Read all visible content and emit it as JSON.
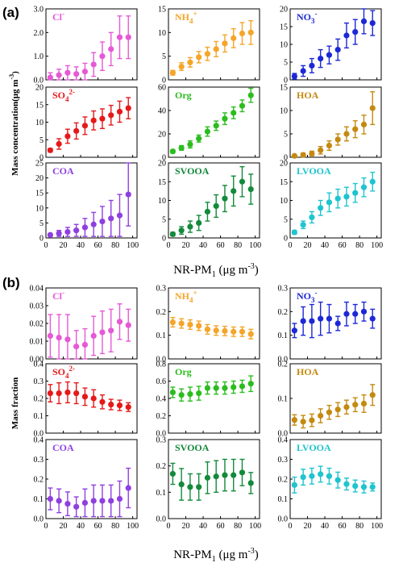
{
  "chart_data": [
    {
      "panel_label": "(a)",
      "type": "scatter",
      "ylabel": "Mass concentration(μg m",
      "ylabel_sup": "-3",
      "ylabel_close": ")",
      "xlabel": "NR-PM",
      "xlabel_sub": "1",
      "xlabel_unit": " (μg m",
      "xlabel_unit_sup": "-3",
      "xlabel_close": ")",
      "x": [
        5,
        15,
        25,
        35,
        45,
        55,
        65,
        75,
        85,
        95
      ],
      "xlim": [
        0,
        105
      ],
      "xticks": [
        "0",
        "20",
        "40",
        "60",
        "80",
        "100"
      ],
      "subplots": [
        {
          "name": "Cl",
          "sup": "-",
          "sub": "",
          "color": "#e659d6",
          "ylim": [
            0,
            3
          ],
          "yticks": [
            "0.0",
            "1.0",
            "2.0",
            "3.0"
          ],
          "values": [
            0.1,
            0.2,
            0.3,
            0.25,
            0.35,
            0.65,
            1.0,
            1.3,
            1.8,
            1.8
          ],
          "errors": [
            0.2,
            0.25,
            0.3,
            0.3,
            0.35,
            0.5,
            0.6,
            0.7,
            0.9,
            0.9
          ]
        },
        {
          "name": "NH",
          "sup": "+",
          "sub": "4",
          "color": "#f5a52a",
          "ylim": [
            0,
            15
          ],
          "yticks": [
            "0",
            "5",
            "10",
            "15"
          ],
          "values": [
            1.5,
            2.8,
            3.7,
            4.8,
            5.5,
            6.5,
            7.7,
            8.8,
            9.8,
            10.0
          ],
          "errors": [
            0.5,
            0.8,
            1.0,
            1.2,
            1.4,
            1.6,
            1.8,
            2.0,
            2.3,
            2.5
          ]
        },
        {
          "name": "NO",
          "sup": "-",
          "sub": "3",
          "color": "#1c28d6",
          "ylim": [
            0,
            20
          ],
          "yticks": [
            "0",
            "5",
            "10",
            "15",
            "20"
          ],
          "values": [
            1.0,
            2.5,
            4.0,
            6.0,
            7.0,
            8.5,
            12.5,
            13.5,
            16.5,
            16.0
          ],
          "errors": [
            0.8,
            1.5,
            2.0,
            2.5,
            2.5,
            3.0,
            3.5,
            3.5,
            3.5,
            3.5
          ]
        },
        {
          "name": "SO",
          "sup": "2-",
          "sub": "4",
          "color": "#e61919",
          "ylim": [
            0,
            20
          ],
          "yticks": [
            "0",
            "5",
            "10",
            "15",
            "20"
          ],
          "values": [
            2.0,
            3.8,
            6.0,
            7.5,
            9.0,
            10.5,
            11.0,
            12.0,
            13.0,
            14.0
          ],
          "errors": [
            0.5,
            1.5,
            2.0,
            2.3,
            2.5,
            2.7,
            2.8,
            2.8,
            3.0,
            3.0
          ]
        },
        {
          "name": "Org",
          "sup": "",
          "sub": "",
          "color": "#2bbd1e",
          "ylim": [
            0,
            60
          ],
          "yticks": [
            "0",
            "20",
            "40",
            "60"
          ],
          "values": [
            5,
            8,
            11,
            16,
            22,
            27,
            33,
            38,
            44,
            53
          ],
          "errors": [
            1.5,
            2,
            3,
            3,
            4,
            4,
            5,
            5,
            5,
            6
          ]
        },
        {
          "name": "HOA",
          "sup": "",
          "sub": "",
          "color": "#c48a10",
          "ylim": [
            0,
            15
          ],
          "yticks": [
            "0",
            "5",
            "10",
            "15"
          ],
          "values": [
            0.3,
            0.5,
            0.8,
            1.5,
            2.5,
            3.8,
            5.0,
            6.0,
            7.0,
            10.5
          ],
          "errors": [
            0.2,
            0.4,
            0.5,
            0.8,
            1.0,
            1.2,
            1.5,
            1.8,
            2.0,
            3.5
          ]
        },
        {
          "name": "COA",
          "sup": "",
          "sub": "",
          "color": "#8f3fe0",
          "ylim": [
            0,
            25
          ],
          "yticks": [
            "0",
            "5",
            "10",
            "15",
            "20",
            "25"
          ],
          "values": [
            1.0,
            1.5,
            2.0,
            2.5,
            3.5,
            4.5,
            5.5,
            6.5,
            7.5,
            14.5
          ],
          "errors": [
            0.5,
            1.0,
            1.5,
            2.0,
            3.0,
            4.0,
            5.0,
            6.0,
            7.0,
            10.5
          ]
        },
        {
          "name": "SVOOA",
          "sup": "",
          "sub": "",
          "color": "#138a3a",
          "ylim": [
            0,
            20
          ],
          "yticks": [
            "0",
            "5",
            "10",
            "15",
            "20"
          ],
          "values": [
            1.0,
            2.0,
            3.0,
            4.0,
            7.0,
            8.5,
            10.5,
            12.5,
            15.0,
            13.0
          ],
          "errors": [
            0.5,
            1.0,
            1.5,
            2.0,
            2.5,
            3.0,
            3.5,
            4.0,
            4.0,
            4.0
          ]
        },
        {
          "name": "LVOOA",
          "sup": "",
          "sub": "",
          "color": "#1ec4cf",
          "ylim": [
            0,
            20
          ],
          "yticks": [
            "0",
            "5",
            "10",
            "15",
            "20"
          ],
          "values": [
            1.5,
            3.5,
            5.5,
            8.0,
            9.5,
            10.5,
            11.0,
            12.0,
            13.5,
            15.0
          ],
          "errors": [
            0.5,
            1.0,
            1.5,
            2.0,
            2.5,
            2.5,
            2.5,
            2.5,
            2.5,
            2.5
          ]
        }
      ]
    },
    {
      "panel_label": "(b)",
      "type": "scatter",
      "ylabel": "Mass fraction",
      "xlabel": "NR-PM",
      "xlabel_sub": "1",
      "xlabel_unit": " (μg m",
      "xlabel_unit_sup": "-3",
      "xlabel_close": ")",
      "x": [
        5,
        15,
        25,
        35,
        45,
        55,
        65,
        75,
        85,
        95
      ],
      "xlim": [
        0,
        105
      ],
      "xticks": [
        "0",
        "20",
        "40",
        "60",
        "80",
        "100"
      ],
      "subplots": [
        {
          "name": "Cl",
          "sup": "-",
          "sub": "",
          "color": "#e659d6",
          "ylim": [
            0,
            0.04
          ],
          "yticks": [
            "0.00",
            "0.01",
            "0.02",
            "0.03",
            "0.04"
          ],
          "values": [
            0.013,
            0.012,
            0.011,
            0.007,
            0.008,
            0.013,
            0.015,
            0.016,
            0.021,
            0.019
          ],
          "errors": [
            0.012,
            0.013,
            0.014,
            0.009,
            0.009,
            0.011,
            0.012,
            0.012,
            0.01,
            0.009
          ]
        },
        {
          "name": "NH",
          "sup": "+",
          "sub": "4",
          "color": "#f5a52a",
          "ylim": [
            0,
            0.3
          ],
          "yticks": [
            "0.0",
            "0.1",
            "0.2",
            "0.3"
          ],
          "values": [
            0.155,
            0.15,
            0.145,
            0.14,
            0.125,
            0.12,
            0.118,
            0.115,
            0.115,
            0.105
          ],
          "errors": [
            0.02,
            0.02,
            0.02,
            0.02,
            0.02,
            0.02,
            0.02,
            0.02,
            0.02,
            0.02
          ]
        },
        {
          "name": "NO",
          "sup": "-",
          "sub": "3",
          "color": "#1c28d6",
          "ylim": [
            0,
            0.3
          ],
          "yticks": [
            "0.0",
            "0.1",
            "0.2",
            "0.3"
          ],
          "values": [
            0.12,
            0.16,
            0.16,
            0.17,
            0.17,
            0.15,
            0.19,
            0.19,
            0.2,
            0.17
          ],
          "errors": [
            0.03,
            0.06,
            0.07,
            0.07,
            0.06,
            0.03,
            0.05,
            0.04,
            0.04,
            0.04
          ]
        },
        {
          "name": "SO",
          "sup": "2-",
          "sub": "4",
          "color": "#e61919",
          "ylim": [
            0,
            0.4
          ],
          "yticks": [
            "0.0",
            "0.1",
            "0.2",
            "0.3",
            "0.4"
          ],
          "values": [
            0.23,
            0.23,
            0.235,
            0.23,
            0.21,
            0.2,
            0.18,
            0.165,
            0.16,
            0.15
          ],
          "errors": [
            0.05,
            0.06,
            0.06,
            0.06,
            0.05,
            0.05,
            0.04,
            0.03,
            0.03,
            0.025
          ]
        },
        {
          "name": "Org",
          "sup": "",
          "sub": "",
          "color": "#2bbd1e",
          "ylim": [
            0,
            0.8
          ],
          "yticks": [
            "0.0",
            "0.2",
            "0.4",
            "0.6",
            "0.8"
          ],
          "values": [
            0.47,
            0.44,
            0.45,
            0.46,
            0.52,
            0.52,
            0.52,
            0.53,
            0.54,
            0.57
          ],
          "errors": [
            0.06,
            0.07,
            0.08,
            0.08,
            0.07,
            0.07,
            0.07,
            0.07,
            0.07,
            0.09
          ]
        },
        {
          "name": "HOA",
          "sup": "",
          "sub": "",
          "color": "#c48a10",
          "ylim": [
            0,
            0.2
          ],
          "yticks": [
            "0.0",
            "0.1",
            "0.2"
          ],
          "values": [
            0.038,
            0.033,
            0.037,
            0.05,
            0.06,
            0.068,
            0.075,
            0.082,
            0.085,
            0.11
          ],
          "errors": [
            0.015,
            0.018,
            0.018,
            0.02,
            0.02,
            0.02,
            0.02,
            0.02,
            0.025,
            0.03
          ]
        },
        {
          "name": "COA",
          "sup": "",
          "sub": "",
          "color": "#8f3fe0",
          "ylim": [
            0,
            0.4
          ],
          "yticks": [
            "0.0",
            "0.1",
            "0.2",
            "0.3",
            "0.4"
          ],
          "values": [
            0.1,
            0.09,
            0.075,
            0.06,
            0.08,
            0.09,
            0.09,
            0.09,
            0.1,
            0.155
          ],
          "errors": [
            0.055,
            0.06,
            0.06,
            0.05,
            0.07,
            0.08,
            0.08,
            0.08,
            0.09,
            0.1
          ]
        },
        {
          "name": "SVOOA",
          "sup": "",
          "sub": "",
          "color": "#138a3a",
          "ylim": [
            0,
            0.3
          ],
          "yticks": [
            "0.0",
            "0.1",
            "0.2",
            "0.3"
          ],
          "values": [
            0.17,
            0.13,
            0.12,
            0.12,
            0.155,
            0.16,
            0.165,
            0.165,
            0.175,
            0.135
          ],
          "errors": [
            0.04,
            0.06,
            0.05,
            0.05,
            0.06,
            0.06,
            0.06,
            0.06,
            0.05,
            0.04
          ]
        },
        {
          "name": "LVOOA",
          "sup": "",
          "sub": "",
          "color": "#1ec4cf",
          "ylim": [
            0,
            0.4
          ],
          "yticks": [
            "0.0",
            "0.1",
            "0.2",
            "0.3",
            "0.4"
          ],
          "values": [
            0.17,
            0.21,
            0.215,
            0.225,
            0.215,
            0.195,
            0.175,
            0.165,
            0.16,
            0.16
          ],
          "errors": [
            0.04,
            0.04,
            0.04,
            0.04,
            0.04,
            0.04,
            0.03,
            0.03,
            0.03,
            0.02
          ]
        }
      ]
    }
  ]
}
